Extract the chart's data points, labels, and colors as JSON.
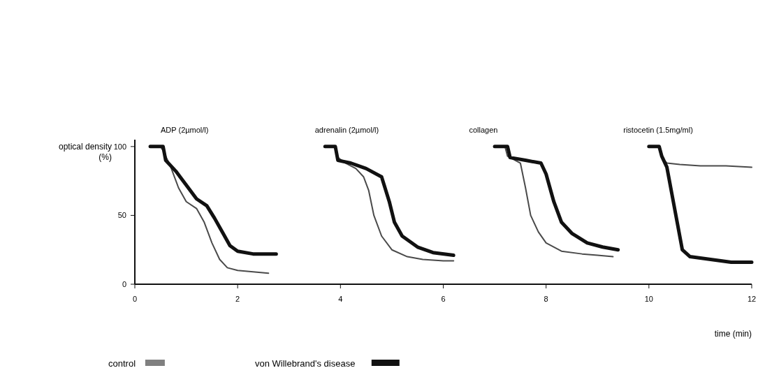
{
  "chart_data": {
    "type": "line",
    "xlabel": "time (min)",
    "ylabel": "optical density (%)",
    "xlim": [
      0,
      12
    ],
    "ylim": [
      0,
      105
    ],
    "xticks": [
      0,
      2,
      4,
      6,
      8,
      10,
      12
    ],
    "yticks": [
      0,
      50,
      100
    ],
    "legend": "bottom",
    "line_style": "solid",
    "marker": "none",
    "grid": false,
    "annotations": [
      "ADP (2µmol/l)",
      "adrenalin (2µmol/l)",
      "collagen",
      "ristocetin (1.5mg/ml)"
    ],
    "series": [
      {
        "name": "control",
        "color": "#4a4a4a",
        "x": [
          0.3,
          0.5,
          0.55,
          0.7,
          0.85,
          1.0,
          1.2,
          1.35,
          1.5,
          1.65,
          1.8,
          2.0,
          2.3,
          2.6,
          3.0,
          3.7,
          3.9,
          3.95,
          4.1,
          4.3,
          4.45,
          4.55,
          4.65,
          4.8,
          5.0,
          5.3,
          5.6,
          6.0,
          6.2,
          6.6,
          7.0,
          7.2,
          7.25,
          7.4,
          7.5,
          7.6,
          7.7,
          7.85,
          8.0,
          8.3,
          8.7,
          9.0,
          9.3,
          9.6,
          10.0,
          10.2,
          10.25,
          10.35,
          10.6,
          11.0,
          11.5,
          12.0
        ],
        "values": [
          100,
          100,
          97,
          85,
          70,
          60,
          55,
          45,
          30,
          18,
          12,
          10,
          9,
          8,
          null,
          100,
          100,
          92,
          88,
          84,
          78,
          68,
          50,
          35,
          25,
          20,
          18,
          17,
          17,
          null,
          100,
          100,
          93,
          90,
          88,
          70,
          50,
          38,
          30,
          24,
          22,
          21,
          20,
          null,
          100,
          100,
          92,
          88,
          87,
          86,
          86,
          85
        ]
      },
      {
        "name": "von Willebrand's disease",
        "color": "#111111",
        "x": [
          0.3,
          0.55,
          0.6,
          0.8,
          1.0,
          1.2,
          1.4,
          1.55,
          1.7,
          1.85,
          2.0,
          2.3,
          2.75,
          3.2,
          3.7,
          3.9,
          3.95,
          4.2,
          4.5,
          4.8,
          4.95,
          5.05,
          5.2,
          5.5,
          5.8,
          6.2,
          6.6,
          7.0,
          7.25,
          7.3,
          7.6,
          7.9,
          8.0,
          8.15,
          8.3,
          8.5,
          8.8,
          9.1,
          9.4,
          9.7,
          10.0,
          10.2,
          10.25,
          10.35,
          10.45,
          10.55,
          10.65,
          10.8,
          11.2,
          11.6,
          12.0
        ],
        "values": [
          100,
          100,
          90,
          82,
          72,
          62,
          57,
          48,
          38,
          28,
          24,
          22,
          22,
          null,
          100,
          100,
          90,
          88,
          84,
          78,
          60,
          45,
          35,
          27,
          23,
          21,
          null,
          100,
          100,
          92,
          90,
          88,
          80,
          60,
          45,
          37,
          30,
          27,
          25,
          null,
          100,
          100,
          93,
          85,
          65,
          45,
          25,
          20,
          18,
          16,
          16
        ]
      }
    ]
  }
}
